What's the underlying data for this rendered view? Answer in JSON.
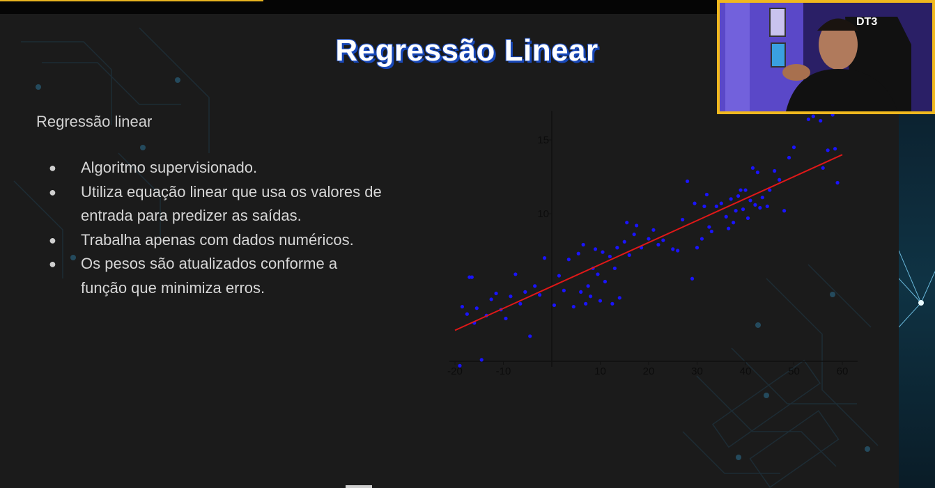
{
  "slide": {
    "title": "Regressão Linear",
    "subtitle": "Regressão linear",
    "bullets": [
      {
        "line1": "Algoritmo supervisionado.",
        "line2": ""
      },
      {
        "line1": "Utiliza equação linear que usa os valores de",
        "line2": "entrada para predizer as saídas."
      },
      {
        "line1": "Trabalha apenas com dados numéricos.",
        "line2": ""
      },
      {
        "line1": "Os pesos são atualizados conforme a",
        "line2": "função que minimiza erros."
      }
    ],
    "bullet_glyph": "●"
  },
  "webcam": {
    "logo_text": "DT3",
    "border_color": "#f0b81e"
  },
  "colors": {
    "accent": "#e8b420",
    "title_shadow": "#1848b8",
    "points": "#1a14ff",
    "line": "#e01818"
  },
  "chart_data": {
    "type": "scatter",
    "xlim": [
      -20,
      62
    ],
    "ylim": [
      0,
      16.5
    ],
    "x_ticks": [
      -20,
      -10,
      10,
      20,
      30,
      40,
      50,
      60
    ],
    "y_ticks": [
      10,
      15
    ],
    "x_tick_labels": [
      "-20",
      "-10",
      "10",
      "20",
      "30",
      "40",
      "50",
      "60"
    ],
    "y_tick_labels": [
      "10",
      "15"
    ],
    "grid": false,
    "regression_line": {
      "x": [
        -20,
        60
      ],
      "y": [
        2.1,
        14.0
      ]
    },
    "points": [
      [
        -19,
        -0.3
      ],
      [
        -18.5,
        3.7
      ],
      [
        -17.5,
        3.2
      ],
      [
        -17,
        5.7
      ],
      [
        -16.5,
        5.7
      ],
      [
        -16,
        2.6
      ],
      [
        -15.5,
        3.6
      ],
      [
        -14.5,
        0.1
      ],
      [
        -13.5,
        3.1
      ],
      [
        -12.5,
        4.2
      ],
      [
        -11.5,
        4.6
      ],
      [
        -10.5,
        3.5
      ],
      [
        -9.5,
        2.9
      ],
      [
        -8.5,
        4.4
      ],
      [
        -7.5,
        5.9
      ],
      [
        -6.5,
        3.9
      ],
      [
        -5.5,
        4.7
      ],
      [
        -4.5,
        1.7
      ],
      [
        -3.5,
        5.1
      ],
      [
        -2.5,
        4.5
      ],
      [
        -1.5,
        7.0
      ],
      [
        0.5,
        3.8
      ],
      [
        1.5,
        5.8
      ],
      [
        2.5,
        4.8
      ],
      [
        3.5,
        6.9
      ],
      [
        4.5,
        3.7
      ],
      [
        5.5,
        7.3
      ],
      [
        6,
        4.7
      ],
      [
        6.5,
        7.9
      ],
      [
        7,
        3.9
      ],
      [
        7.5,
        5.1
      ],
      [
        8,
        4.4
      ],
      [
        8.5,
        6.3
      ],
      [
        9,
        7.6
      ],
      [
        9.5,
        5.9
      ],
      [
        10,
        4.1
      ],
      [
        10.5,
        7.4
      ],
      [
        11,
        5.4
      ],
      [
        12,
        7.1
      ],
      [
        12.5,
        3.9
      ],
      [
        13,
        6.3
      ],
      [
        13.5,
        7.7
      ],
      [
        14,
        4.3
      ],
      [
        15,
        8.1
      ],
      [
        15.5,
        9.4
      ],
      [
        16,
        7.2
      ],
      [
        17,
        8.6
      ],
      [
        17.5,
        9.2
      ],
      [
        18.5,
        7.7
      ],
      [
        20,
        8.3
      ],
      [
        21,
        8.9
      ],
      [
        22,
        7.9
      ],
      [
        23,
        8.2
      ],
      [
        25,
        7.6
      ],
      [
        26,
        7.5
      ],
      [
        27,
        9.6
      ],
      [
        28,
        12.2
      ],
      [
        29,
        5.6
      ],
      [
        29.5,
        10.7
      ],
      [
        30,
        7.7
      ],
      [
        31,
        8.3
      ],
      [
        31.5,
        10.5
      ],
      [
        32,
        11.3
      ],
      [
        32.5,
        9.1
      ],
      [
        33,
        8.8
      ],
      [
        34,
        10.5
      ],
      [
        35,
        10.7
      ],
      [
        36,
        9.8
      ],
      [
        36.5,
        9.0
      ],
      [
        37,
        11.0
      ],
      [
        37.5,
        9.4
      ],
      [
        38,
        10.2
      ],
      [
        38.5,
        11.2
      ],
      [
        39,
        11.6
      ],
      [
        39.5,
        10.3
      ],
      [
        40,
        11.6
      ],
      [
        40.5,
        9.7
      ],
      [
        41,
        10.9
      ],
      [
        41.5,
        13.1
      ],
      [
        42,
        10.6
      ],
      [
        42.5,
        12.8
      ],
      [
        43,
        10.4
      ],
      [
        43.5,
        11.1
      ],
      [
        44.5,
        10.5
      ],
      [
        45,
        11.6
      ],
      [
        46,
        12.9
      ],
      [
        47,
        12.3
      ],
      [
        48,
        10.2
      ],
      [
        49,
        13.8
      ],
      [
        50,
        14.5
      ],
      [
        53,
        16.4
      ],
      [
        54,
        16.6
      ],
      [
        55.5,
        16.3
      ],
      [
        56,
        13.1
      ],
      [
        57,
        14.3
      ],
      [
        58,
        16.7
      ],
      [
        58.5,
        14.4
      ],
      [
        59,
        12.1
      ]
    ]
  }
}
